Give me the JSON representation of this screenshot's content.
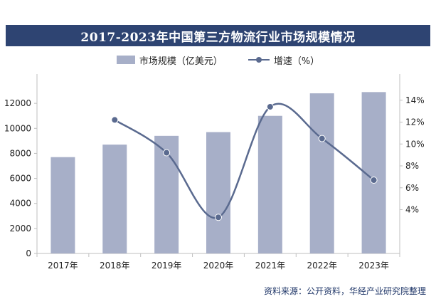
{
  "chart_data": {
    "type": "bar+line",
    "title": "2017-2023年中国第三方物流行业市场规模情况",
    "categories": [
      "2017年",
      "2018年",
      "2019年",
      "2020年",
      "2021年",
      "2022年",
      "2023年"
    ],
    "series": [
      {
        "name": "市场规模（亿美元）",
        "type": "bar",
        "axis": "left",
        "color": "#a7afc8",
        "values": [
          7700,
          8700,
          9400,
          9700,
          11000,
          12800,
          12900
        ]
      },
      {
        "name": "增速（%）",
        "type": "line",
        "axis": "right",
        "color": "#5a6a8f",
        "values": [
          null,
          12.2,
          9.2,
          3.3,
          13.4,
          10.5,
          6.7
        ]
      }
    ],
    "left_axis": {
      "ylim": [
        0,
        14000
      ],
      "ticks": [
        0,
        2000,
        4000,
        6000,
        8000,
        10000,
        12000
      ],
      "tick_labels": [
        "0",
        "2000",
        "4000",
        "6000",
        "8000",
        "10000",
        "12000"
      ]
    },
    "right_axis": {
      "ylim": [
        0,
        16
      ],
      "ticks": [
        4,
        6,
        8,
        10,
        12,
        14
      ],
      "tick_labels": [
        "4%",
        "6%",
        "8%",
        "10%",
        "12%",
        "14%"
      ]
    },
    "grid": false,
    "legend_position": "top"
  },
  "header": {
    "title": "2017-2023年中国第三方物流行业市场规模情况"
  },
  "legend": {
    "bar_label": "市场规模（亿美元）",
    "line_label": "增速（%）"
  },
  "footer": {
    "source": "资料来源：公开资料，华经产业研究院整理"
  },
  "colors": {
    "title_bg": "#2e4472",
    "bar": "#a7afc8",
    "line": "#5a6a8f",
    "source_text": "#1f3668"
  }
}
